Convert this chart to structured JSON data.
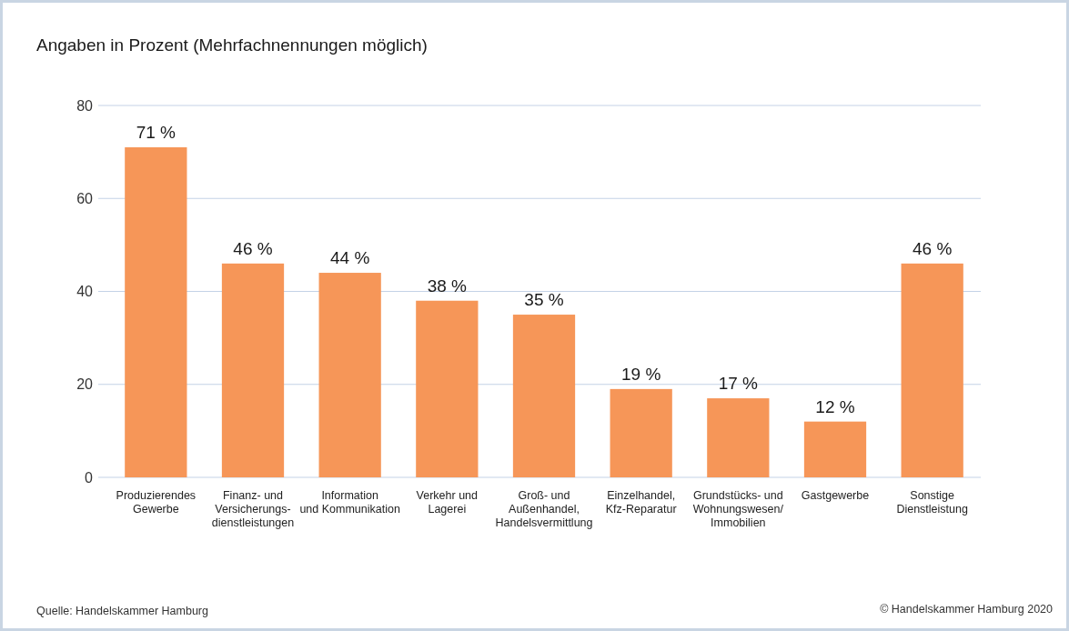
{
  "chart_data": {
    "type": "bar",
    "title": "Angaben in Prozent (Mehrfachnennungen möglich)",
    "categories": [
      "Produzierendes\nGewerbe",
      "Finanz- und\nVersicherungs-\ndienstleistungen",
      "Information\nund Kommunikation",
      "Verkehr und\nLagerei",
      "Groß- und\nAußenhandel,\nHandelsvermittlung",
      "Einzelhandel,\nKfz-Reparatur",
      "Grundstücks- und\nWohnungswesen/\nImmobilien",
      "Gastgewerbe",
      "Sonstige\nDienstleistung"
    ],
    "values": [
      71,
      46,
      44,
      38,
      35,
      19,
      17,
      12,
      46
    ],
    "value_labels": [
      "71 %",
      "46 %",
      "44 %",
      "38 %",
      "35 %",
      "19 %",
      "17 %",
      "12 %",
      "46 %"
    ],
    "color": "#f69658",
    "ylim": [
      0,
      80
    ],
    "yticks": [
      0,
      20,
      40,
      60,
      80
    ],
    "grid": "y",
    "annotations": [
      "Quelle: Handelskammer Hamburg",
      "© Handelskammer Hamburg 2020"
    ]
  }
}
